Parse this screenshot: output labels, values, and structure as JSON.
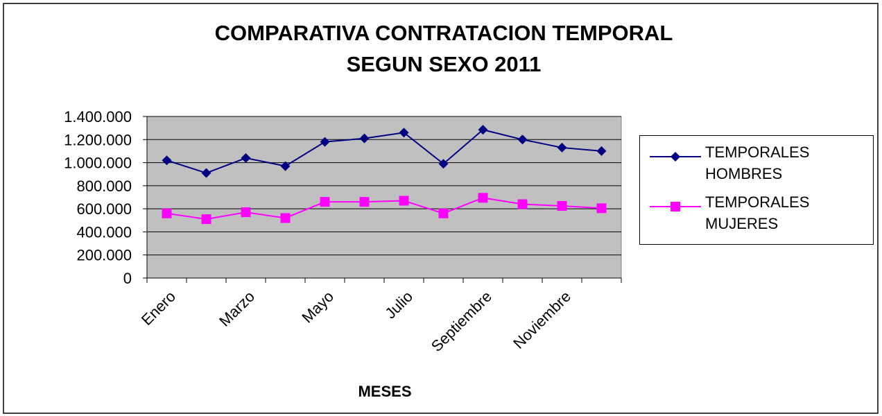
{
  "chart_data": {
    "type": "line",
    "title": [
      "COMPARATIVA CONTRATACION TEMPORAL",
      "SEGUN SEXO 2011"
    ],
    "x_label": "MESES",
    "categories": [
      "Enero",
      null,
      "Marzo",
      null,
      "Mayo",
      null,
      "Julio",
      null,
      "Septiembre",
      null,
      "Noviembre",
      null
    ],
    "series": [
      {
        "name": "TEMPORALES HOMBRES",
        "color": "#000080",
        "marker": "diamond",
        "values": [
          1020000,
          910000,
          1040000,
          970000,
          1180000,
          1210000,
          1260000,
          990000,
          1285000,
          1200000,
          1130000,
          1100000
        ]
      },
      {
        "name": "TEMPORALES MUJERES",
        "color": "#ff00ff",
        "marker": "square",
        "values": [
          560000,
          510000,
          570000,
          520000,
          660000,
          660000,
          670000,
          560000,
          695000,
          640000,
          625000,
          605000
        ]
      }
    ],
    "ylim": [
      0,
      1400000
    ],
    "yticks": [
      0,
      {
        "value": 200000,
        "label": "200.000"
      },
      {
        "value": 400000,
        "label": "400.000"
      },
      {
        "value": 600000,
        "label": "600.000"
      },
      {
        "value": 800000,
        "label": "800.000"
      },
      {
        "value": 1000000,
        "label": "1.000.000"
      },
      {
        "value": 1200000,
        "label": "1.200.000"
      },
      {
        "value": 1400000,
        "label": "1.400.000"
      }
    ],
    "grid": true,
    "legend": "right",
    "plot_background": "#c0c0c0"
  }
}
